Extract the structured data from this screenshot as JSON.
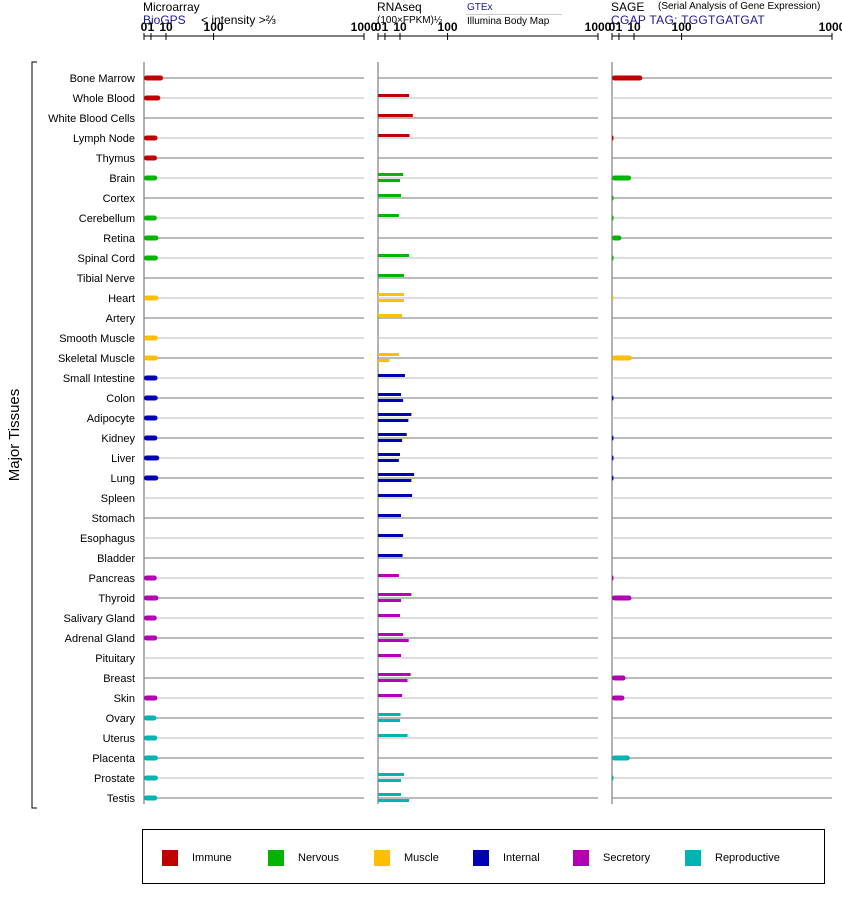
{
  "headers": {
    "microarray_title": "Microarray",
    "microarray_source": "BioGPS",
    "microarray_units": "< intensity >⅔",
    "rnaseq_title": "RNAseq",
    "rnaseq_units": "(100×FPKM)½",
    "rnaseq_source_link": "GTEx",
    "rnaseq_source_sub": "Illumina Body Map",
    "sage_title": "SAGE",
    "sage_subtitle": "(Serial Analysis of Gene Expression)",
    "sage_tag": "CGAP TAG: TGGTGATGAT"
  },
  "y_group_label": "Major Tissues",
  "colors": {
    "Immune": "#c00000",
    "Nervous": "#00b400",
    "Muscle": "#ffbe00",
    "Internal": "#0000b4",
    "Secretory": "#b400b4",
    "Reproductive": "#00b4b4"
  },
  "legend": [
    {
      "label": "Immune",
      "category": "Immune"
    },
    {
      "label": "Nervous",
      "category": "Nervous"
    },
    {
      "label": "Muscle",
      "category": "Muscle"
    },
    {
      "label": "Internal",
      "category": "Internal"
    },
    {
      "label": "Secretory",
      "category": "Secretory"
    },
    {
      "label": "Reproductive",
      "category": "Reproductive"
    }
  ],
  "chart_data": {
    "type": "bar",
    "orientation": "horizontal",
    "x_scale": "sqrt",
    "x_ticks": [
      0,
      1,
      10,
      100,
      1000
    ],
    "xlim": [
      0,
      1000
    ],
    "tissues": [
      {
        "name": "Bone Marrow",
        "category": "Immune",
        "microarray": [
          7.5
        ],
        "rnaseq": [],
        "sage": [
          19
        ]
      },
      {
        "name": "Whole Blood",
        "category": "Immune",
        "microarray": [
          5.5
        ],
        "rnaseq": [
          20
        ],
        "sage": []
      },
      {
        "name": "White Blood Cells",
        "category": "Immune",
        "microarray": [],
        "rnaseq": [
          25
        ],
        "sage": []
      },
      {
        "name": "Lymph Node",
        "category": "Immune",
        "microarray": [
          3.8
        ],
        "rnaseq": [
          20.5
        ],
        "sage": [
          0.01
        ]
      },
      {
        "name": "Thymus",
        "category": "Immune",
        "microarray": [
          3.5
        ],
        "rnaseq": [],
        "sage": []
      },
      {
        "name": "Brain",
        "category": "Nervous",
        "microarray": [
          3.6
        ],
        "rnaseq": [
          13,
          10
        ],
        "sage": [
          7.5
        ]
      },
      {
        "name": "Cortex",
        "category": "Nervous",
        "microarray": [],
        "rnaseq": [
          11
        ],
        "sage": [
          0.005
        ]
      },
      {
        "name": "Cerebellum",
        "category": "Nervous",
        "microarray": [
          3.4
        ],
        "rnaseq": [
          9
        ],
        "sage": [
          0.005
        ]
      },
      {
        "name": "Retina",
        "category": "Nervous",
        "microarray": [
          4.3
        ],
        "rnaseq": [],
        "sage": [
          1.8
        ]
      },
      {
        "name": "Spinal Cord",
        "category": "Nervous",
        "microarray": [
          4.0
        ],
        "rnaseq": [
          20
        ],
        "sage": [
          0.01
        ]
      },
      {
        "name": "Tibial Nerve",
        "category": "Nervous",
        "microarray": [],
        "rnaseq": [
          14
        ],
        "sage": []
      },
      {
        "name": "Heart",
        "category": "Muscle",
        "microarray": [
          4.3
        ],
        "rnaseq": [
          14,
          14
        ],
        "sage": [
          0.003
        ]
      },
      {
        "name": "Artery",
        "category": "Muscle",
        "microarray": [],
        "rnaseq": [
          12
        ],
        "sage": []
      },
      {
        "name": "Smooth Muscle",
        "category": "Muscle",
        "microarray": [
          4.0
        ],
        "rnaseq": [],
        "sage": []
      },
      {
        "name": "Skeletal Muscle",
        "category": "Muscle",
        "microarray": [
          4.0
        ],
        "rnaseq": [
          9,
          2.7
        ],
        "sage": [
          8.2
        ]
      },
      {
        "name": "Small Intestine",
        "category": "Internal",
        "microarray": [
          3.8
        ],
        "rnaseq": [
          15
        ],
        "sage": []
      },
      {
        "name": "Colon",
        "category": "Internal",
        "microarray": [
          3.9
        ],
        "rnaseq": [
          11,
          13
        ],
        "sage": [
          0.01
        ]
      },
      {
        "name": "Adipocyte",
        "category": "Internal",
        "microarray": [
          3.8
        ],
        "rnaseq": [
          23,
          19
        ],
        "sage": []
      },
      {
        "name": "Kidney",
        "category": "Internal",
        "microarray": [
          3.7
        ],
        "rnaseq": [
          17,
          12
        ],
        "sage": [
          0.01
        ]
      },
      {
        "name": "Liver",
        "category": "Internal",
        "microarray": [
          4.8
        ],
        "rnaseq": [
          10,
          9
        ],
        "sage": [
          0.01
        ]
      },
      {
        "name": "Lung",
        "category": "Internal",
        "microarray": [
          4.2
        ],
        "rnaseq": [
          27,
          23
        ],
        "sage": [
          0.01
        ]
      },
      {
        "name": "Spleen",
        "category": "Internal",
        "microarray": [],
        "rnaseq": [
          24
        ],
        "sage": []
      },
      {
        "name": "Stomach",
        "category": "Internal",
        "microarray": [],
        "rnaseq": [
          11
        ],
        "sage": []
      },
      {
        "name": "Esophagus",
        "category": "Internal",
        "microarray": [],
        "rnaseq": [
          13
        ],
        "sage": []
      },
      {
        "name": "Bladder",
        "category": "Internal",
        "microarray": [],
        "rnaseq": [
          12.5
        ],
        "sage": []
      },
      {
        "name": "Pancreas",
        "category": "Secretory",
        "microarray": [
          3.4
        ],
        "rnaseq": [
          9
        ],
        "sage": [
          0.01
        ]
      },
      {
        "name": "Thyroid",
        "category": "Secretory",
        "microarray": [
          4.3
        ],
        "rnaseq": [
          23,
          11
        ],
        "sage": [
          7.8
        ]
      },
      {
        "name": "Salivary Gland",
        "category": "Secretory",
        "microarray": [
          3.4
        ],
        "rnaseq": [
          10
        ],
        "sage": []
      },
      {
        "name": "Adrenal Gland",
        "category": "Secretory",
        "microarray": [
          3.6
        ],
        "rnaseq": [
          13,
          19.5
        ],
        "sage": []
      },
      {
        "name": "Pituitary",
        "category": "Secretory",
        "microarray": [],
        "rnaseq": [
          11
        ],
        "sage": []
      },
      {
        "name": "Breast",
        "category": "Secretory",
        "microarray": [],
        "rnaseq": [
          22,
          18
        ],
        "sage": [
          3.8
        ]
      },
      {
        "name": "Skin",
        "category": "Secretory",
        "microarray": [
          3.7
        ],
        "rnaseq": [
          12
        ],
        "sage": [
          3.2
        ]
      },
      {
        "name": "Ovary",
        "category": "Reproductive",
        "microarray": [
          3.2
        ],
        "rnaseq": [
          10.5,
          10
        ],
        "sage": []
      },
      {
        "name": "Uterus",
        "category": "Reproductive",
        "microarray": [
          3.6
        ],
        "rnaseq": [
          18
        ],
        "sage": []
      },
      {
        "name": "Placenta",
        "category": "Reproductive",
        "microarray": [
          4.0
        ],
        "rnaseq": [],
        "sage": [
          6.5
        ]
      },
      {
        "name": "Prostate",
        "category": "Reproductive",
        "microarray": [
          4.0
        ],
        "rnaseq": [
          14,
          11
        ],
        "sage": [
          0.005
        ]
      },
      {
        "name": "Testis",
        "category": "Reproductive",
        "microarray": [
          3.6
        ],
        "rnaseq": [
          11,
          20
        ],
        "sage": []
      }
    ]
  }
}
